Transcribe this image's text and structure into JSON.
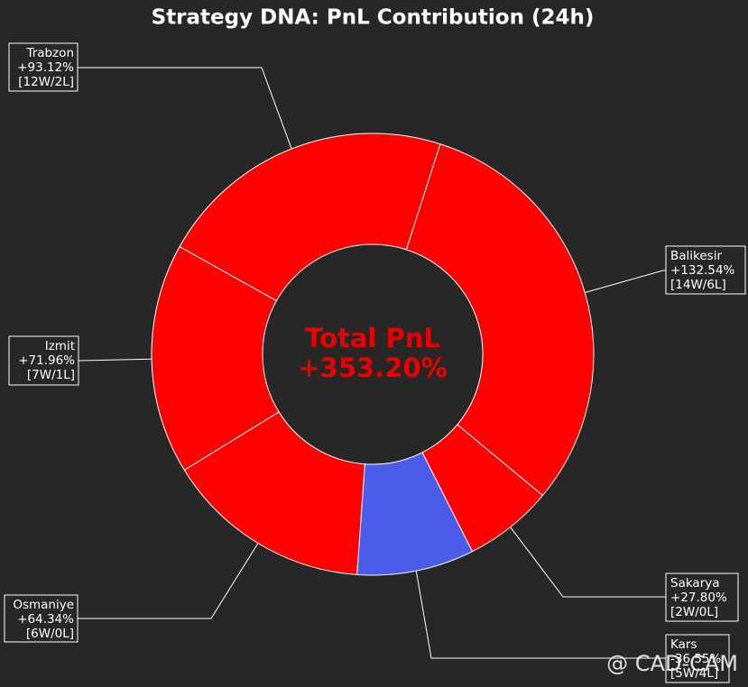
{
  "chart_data": {
    "type": "donut",
    "title": "Strategy DNA: PnL Contribution (24h)",
    "categories": [
      "Balikesir",
      "Sakarya",
      "Kars",
      "Osmaniye",
      "Izmit",
      "Trabzon"
    ],
    "values": [
      132.54,
      27.8,
      -36.55,
      64.34,
      71.96,
      93.12
    ],
    "value_labels": [
      "+132.54%",
      "+27.80%",
      "-36.55%",
      "+64.34%",
      "+71.96%",
      "+93.12%"
    ],
    "records": [
      "[14W/6L]",
      "[2W/0L]",
      "[5W/4L]",
      "[6W/0L]",
      "[7W/1L]",
      "[12W/2L]"
    ],
    "colors": [
      "#ff0000",
      "#ff0000",
      "#4b5bea",
      "#ff0000",
      "#ff0000",
      "#ff0000"
    ],
    "center_title": "Total PnL",
    "center_value": "+353.20%",
    "watermark": "@ CAD-CAM"
  }
}
